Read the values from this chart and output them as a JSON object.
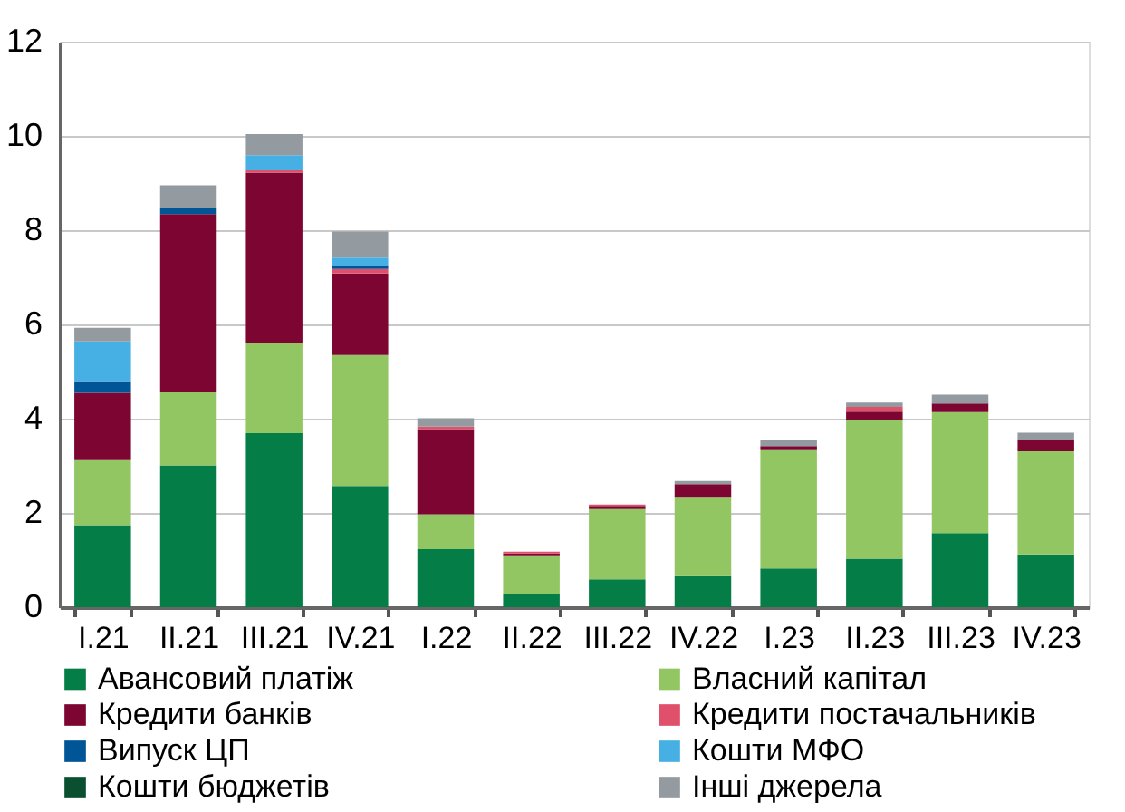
{
  "chart_data": {
    "type": "bar",
    "stacked": true,
    "categories": [
      "I.21",
      "II.21",
      "III.21",
      "IV.21",
      "I.22",
      "II.22",
      "III.22",
      "IV.22",
      "I.23",
      "II.23",
      "III.23",
      "IV.23"
    ],
    "series": [
      {
        "name": "Авансовий платіж",
        "color": "#057d46",
        "values": [
          1.74,
          3.01,
          3.69,
          2.57,
          1.23,
          0.28,
          0.59,
          0.66,
          0.82,
          1.03,
          1.57,
          1.12
        ]
      },
      {
        "name": "Власний капітал",
        "color": "#92c663",
        "values": [
          1.38,
          1.55,
          1.92,
          2.78,
          0.74,
          0.82,
          1.49,
          1.68,
          2.51,
          2.94,
          2.57,
          2.19
        ]
      },
      {
        "name": "Кредити банків",
        "color": "#7c0532",
        "values": [
          1.43,
          3.78,
          3.61,
          1.73,
          1.81,
          0.04,
          0.07,
          0.27,
          0.09,
          0.18,
          0.18,
          0.24
        ]
      },
      {
        "name": "Кредити постачальників",
        "color": "#e0506a",
        "values": [
          0,
          0,
          0.05,
          0.1,
          0.05,
          0.04,
          0.03,
          0,
          0,
          0.1,
          0,
          0
        ]
      },
      {
        "name": "Випуск ЦП",
        "color": "#005596",
        "values": [
          0.25,
          0.14,
          0,
          0.07,
          0,
          0,
          0,
          0,
          0,
          0,
          0,
          0
        ]
      },
      {
        "name": "Кошти МФО",
        "color": "#46b0e4",
        "values": [
          0.84,
          0,
          0.32,
          0.17,
          0,
          0,
          0,
          0,
          0,
          0,
          0,
          0
        ]
      },
      {
        "name": "Кошти бюджетів",
        "color": "#0a5030",
        "values": [
          0,
          0,
          0,
          0,
          0,
          0,
          0,
          0,
          0,
          0,
          0,
          0
        ]
      },
      {
        "name": "Інші джерела",
        "color": "#939aa0",
        "values": [
          0.29,
          0.47,
          0.45,
          0.55,
          0.18,
          0,
          0,
          0.07,
          0.13,
          0.09,
          0.19,
          0.15
        ]
      }
    ],
    "ylim": [
      0,
      12
    ],
    "yticks": [
      0,
      2,
      4,
      6,
      8,
      10,
      12
    ],
    "grid": "y",
    "legend": "bottom"
  }
}
